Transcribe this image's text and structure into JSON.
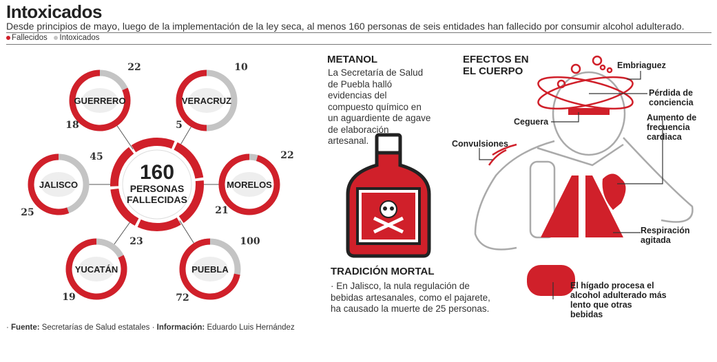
{
  "header": {
    "title": "Intoxicados",
    "subtitle": "Desde principios de mayo, luego de la implementación de la ley seca, al menos 160 personas de seis entidades han fallecido por consumir alcohol adulterado."
  },
  "legend": {
    "fallecidos": "Fallecidos",
    "intoxicados": "Intoxicados"
  },
  "colors": {
    "fallecidos": "#d0202a",
    "intoxicados": "#c4c4c4"
  },
  "chart_data": {
    "type": "pie",
    "series_names": [
      "Fallecidos",
      "Intoxicados"
    ],
    "total": {
      "number": "160",
      "line1": "PERSONAS",
      "line2": "FALLECIDAS"
    },
    "states": [
      {
        "name": "GUERRERO",
        "fallecidos": 18,
        "intoxicados": 22
      },
      {
        "name": "VERACRUZ",
        "fallecidos": 5,
        "intoxicados": 10
      },
      {
        "name": "JALISCO",
        "fallecidos": 25,
        "intoxicados": 45
      },
      {
        "name": "MORELOS",
        "fallecidos": 21,
        "intoxicados": 22
      },
      {
        "name": "YUCATÁN",
        "fallecidos": 19,
        "intoxicados": 23
      },
      {
        "name": "PUEBLA",
        "fallecidos": 72,
        "intoxicados": 100
      }
    ]
  },
  "metanol": {
    "title": "METANOL",
    "text": "La Secretaría de Salud de Puebla halló evidencias del compuesto químico en un aguardiente de agave de elaboración artesanal.",
    "skull_icon": "skull-crossbones-icon"
  },
  "tradicion": {
    "title": "TRADICIÓN MORTAL",
    "text": "· En Jalisco, la nula regulación de bebidas artesanales, como el pajarete, ha causado la muerte de 25 personas."
  },
  "efectos": {
    "title_line1": "EFECTOS EN",
    "title_line2": "EL CUERPO",
    "labels": {
      "embriaguez": "Embriaguez",
      "perdida": "Pérdida de conciencia",
      "ceguera": "Ceguera",
      "aumento": "Aumento de frecuencia cardiaca",
      "convulsiones": "Convulsiones",
      "respiracion": "Respiración agitada",
      "higado": "El hígado procesa el alcohol adulterado más lento que otras bebidas"
    }
  },
  "footer": {
    "fuente_label": "Fuente:",
    "fuente": "Secretarías de Salud estatales",
    "info_label": "Información:",
    "info": "Eduardo Luis Hernández"
  }
}
